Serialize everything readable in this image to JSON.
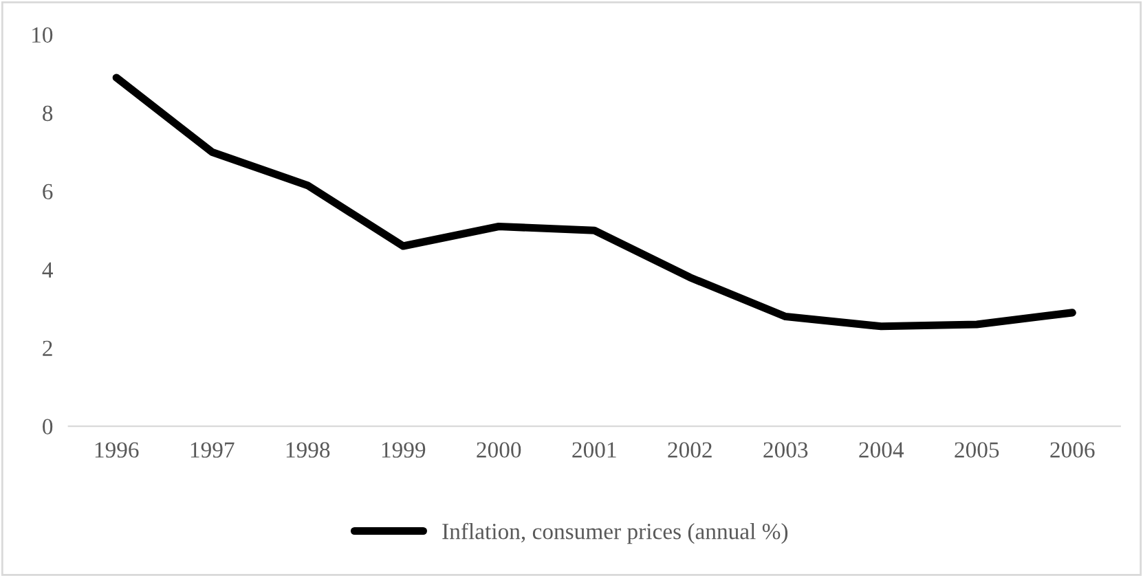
{
  "chart_data": {
    "type": "line",
    "categories": [
      "1996",
      "1997",
      "1998",
      "1999",
      "2000",
      "2001",
      "2002",
      "2003",
      "2004",
      "2005",
      "2006"
    ],
    "series": [
      {
        "name": "Inflation, consumer prices (annual %)",
        "color": "#000000",
        "values": [
          8.9,
          7.0,
          6.15,
          4.6,
          5.1,
          5.0,
          3.8,
          2.8,
          2.55,
          2.6,
          2.9
        ]
      }
    ],
    "ylim": [
      0,
      10
    ],
    "yticks": [
      0,
      2,
      4,
      6,
      8,
      10
    ],
    "grid": false,
    "legend": "bottom",
    "marker": "none",
    "line_style": "solid"
  }
}
